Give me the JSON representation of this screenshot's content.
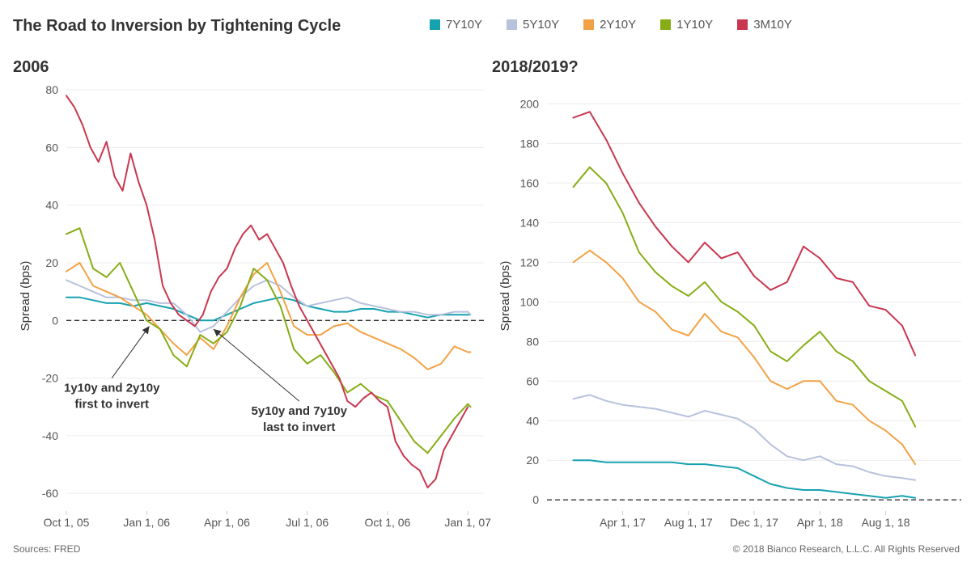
{
  "title": "The Road to Inversion by Tightening Cycle",
  "legend": [
    {
      "label": "7Y10Y",
      "color": "#17a2b0"
    },
    {
      "label": "5Y10Y",
      "color": "#b7c2dc"
    },
    {
      "label": "2Y10Y",
      "color": "#f2a246"
    },
    {
      "label": "1Y10Y",
      "color": "#86ad16"
    },
    {
      "label": "3M10Y",
      "color": "#c8374f"
    }
  ],
  "footer": {
    "source": "Sources: FRED",
    "copyright": "© 2018 Bianco Research, L.L.C. All Rights Reserved"
  },
  "chart_data": [
    {
      "type": "line",
      "title": "2006",
      "ylabel": "Spread (bps)",
      "ylim": [
        -65,
        82
      ],
      "yticks": [
        80,
        60,
        40,
        20,
        0,
        -20,
        -40,
        -60
      ],
      "xticks": [
        "Oct 1, 05",
        "Jan 1, 06",
        "Apr 1, 06",
        "Jul 1, 06",
        "Oct 1, 06",
        "Jan 1, 07"
      ],
      "xlim": [
        0,
        15.6
      ],
      "tick_positions": [
        0,
        3,
        6,
        9,
        12,
        15
      ],
      "zero_line": true,
      "grid": "horizontal",
      "annotations": [
        {
          "text": [
            "1y10y and 2y10y",
            "first to invert"
          ],
          "arrow_from": [
            1.7,
            -20
          ],
          "arrow_to": [
            3.1,
            -2
          ]
        },
        {
          "text": [
            "5y10y and 7y10y",
            "last to invert"
          ],
          "arrow_from": [
            8.7,
            -28
          ],
          "arrow_to": [
            5.5,
            -3
          ]
        }
      ],
      "series": [
        {
          "name": "7Y10Y",
          "x": [
            0,
            0.5,
            1,
            1.5,
            2,
            2.5,
            3,
            3.5,
            4,
            4.5,
            5,
            5.5,
            6,
            6.5,
            7,
            7.5,
            8,
            8.5,
            9,
            9.5,
            10,
            10.5,
            11,
            11.5,
            12,
            12.5,
            13,
            13.5,
            14,
            14.5,
            15,
            15.1
          ],
          "y": [
            8,
            8,
            7,
            6,
            6,
            5,
            6,
            5,
            4,
            2,
            0,
            0,
            2,
            4,
            6,
            7,
            8,
            7,
            5,
            4,
            3,
            3,
            4,
            4,
            3,
            3,
            2,
            1,
            2,
            2,
            2,
            2
          ]
        },
        {
          "name": "5Y10Y",
          "x": [
            0,
            0.5,
            1,
            1.5,
            2,
            2.5,
            3,
            3.5,
            4,
            4.5,
            5,
            5.5,
            6,
            6.5,
            7,
            7.5,
            8,
            8.5,
            9,
            9.5,
            10,
            10.5,
            11,
            11.5,
            12,
            12.5,
            13,
            13.5,
            14,
            14.5,
            15,
            15.1
          ],
          "y": [
            14,
            12,
            10,
            8,
            8,
            7,
            7,
            6,
            6,
            2,
            -4,
            -2,
            3,
            8,
            12,
            14,
            12,
            8,
            5,
            6,
            7,
            8,
            6,
            5,
            4,
            3,
            3,
            2,
            2,
            3,
            3,
            2
          ]
        },
        {
          "name": "2Y10Y",
          "x": [
            0,
            0.5,
            1,
            1.5,
            2,
            2.5,
            3,
            3.5,
            4,
            4.5,
            5,
            5.5,
            6,
            6.5,
            7,
            7.5,
            8,
            8.5,
            9,
            9.5,
            10,
            10.5,
            11,
            11.5,
            12,
            12.5,
            13,
            13.5,
            14,
            14.5,
            15,
            15.1
          ],
          "y": [
            17,
            20,
            12,
            10,
            8,
            5,
            2,
            -3,
            -8,
            -12,
            -6,
            -10,
            -2,
            8,
            16,
            20,
            10,
            -2,
            -5,
            -5,
            -2,
            -1,
            -4,
            -6,
            -8,
            -10,
            -13,
            -17,
            -15,
            -9,
            -11,
            -11
          ]
        },
        {
          "name": "1Y10Y",
          "x": [
            0,
            0.5,
            1,
            1.5,
            2,
            2.5,
            3,
            3.5,
            4,
            4.5,
            5,
            5.5,
            6,
            6.5,
            7,
            7.5,
            8,
            8.5,
            9,
            9.5,
            10,
            10.5,
            11,
            11.5,
            12,
            12.5,
            13,
            13.5,
            14,
            14.5,
            15,
            15.1
          ],
          "y": [
            30,
            32,
            18,
            15,
            20,
            10,
            0,
            -3,
            -12,
            -16,
            -5,
            -8,
            -4,
            5,
            18,
            14,
            5,
            -10,
            -15,
            -12,
            -18,
            -25,
            -22,
            -26,
            -28,
            -35,
            -42,
            -46,
            -40,
            -34,
            -29,
            -30
          ]
        },
        {
          "name": "3M10Y",
          "x": [
            0,
            0.3,
            0.6,
            0.9,
            1.2,
            1.5,
            1.8,
            2.1,
            2.4,
            2.7,
            3,
            3.3,
            3.6,
            3.9,
            4.2,
            4.5,
            4.8,
            5.1,
            5.4,
            5.7,
            6,
            6.3,
            6.6,
            6.9,
            7.2,
            7.5,
            7.8,
            8.1,
            8.4,
            8.7,
            9,
            9.3,
            9.6,
            9.9,
            10.2,
            10.5,
            10.8,
            11.1,
            11.4,
            11.7,
            12,
            12.3,
            12.6,
            12.9,
            13.2,
            13.5,
            13.8,
            14.1,
            14.4,
            14.7,
            15
          ],
          "y": [
            78,
            74,
            68,
            60,
            55,
            62,
            50,
            45,
            58,
            48,
            40,
            28,
            12,
            6,
            2,
            0,
            -2,
            2,
            10,
            15,
            18,
            25,
            30,
            33,
            28,
            30,
            25,
            20,
            12,
            5,
            0,
            -5,
            -10,
            -15,
            -20,
            -28,
            -30,
            -27,
            -25,
            -28,
            -30,
            -42,
            -47,
            -50,
            -52,
            -58,
            -55,
            -45,
            -40,
            -35,
            -30
          ]
        }
      ]
    },
    {
      "type": "line",
      "title": "2018/2019?",
      "ylabel": "Spread (bps)",
      "ylim": [
        -4,
        210
      ],
      "yticks": [
        200,
        180,
        160,
        140,
        120,
        100,
        80,
        60,
        40,
        20,
        0
      ],
      "xticks": [
        "Apr 1, 17",
        "Aug 1, 17",
        "Dec 1, 17",
        "Apr 1, 18",
        "Aug 1, 18"
      ],
      "xlim": [
        -4.6,
        20.6
      ],
      "tick_positions": [
        0,
        4,
        8,
        12,
        16
      ],
      "zero_line": true,
      "grid": "horizontal",
      "series": [
        {
          "name": "7Y10Y",
          "x": [
            -3,
            -2,
            -1,
            0,
            1,
            2,
            3,
            4,
            5,
            6,
            7,
            8,
            9,
            10,
            11,
            12,
            13,
            14,
            15,
            16,
            17,
            17.8
          ],
          "y": [
            20,
            20,
            19,
            19,
            19,
            19,
            19,
            18,
            18,
            17,
            16,
            12,
            8,
            6,
            5,
            5,
            4,
            3,
            2,
            1,
            2,
            1
          ]
        },
        {
          "name": "5Y10Y",
          "x": [
            -3,
            -2,
            -1,
            0,
            1,
            2,
            3,
            4,
            5,
            6,
            7,
            8,
            9,
            10,
            11,
            12,
            13,
            14,
            15,
            16,
            17,
            17.8
          ],
          "y": [
            51,
            53,
            50,
            48,
            47,
            46,
            44,
            42,
            45,
            43,
            41,
            36,
            28,
            22,
            20,
            22,
            18,
            17,
            14,
            12,
            11,
            10
          ]
        },
        {
          "name": "2Y10Y",
          "x": [
            -3,
            -2,
            -1,
            0,
            1,
            2,
            3,
            4,
            5,
            6,
            7,
            8,
            9,
            10,
            11,
            12,
            13,
            14,
            15,
            16,
            17,
            17.8
          ],
          "y": [
            120,
            126,
            120,
            112,
            100,
            95,
            86,
            83,
            94,
            85,
            82,
            72,
            60,
            56,
            60,
            60,
            50,
            48,
            40,
            35,
            28,
            18
          ]
        },
        {
          "name": "1Y10Y",
          "x": [
            -3,
            -2,
            -1,
            0,
            1,
            2,
            3,
            4,
            5,
            6,
            7,
            8,
            9,
            10,
            11,
            12,
            13,
            14,
            15,
            16,
            17,
            17.8
          ],
          "y": [
            158,
            168,
            160,
            145,
            125,
            115,
            108,
            103,
            110,
            100,
            95,
            88,
            75,
            70,
            78,
            85,
            75,
            70,
            60,
            55,
            50,
            37
          ]
        },
        {
          "name": "3M10Y",
          "x": [
            -3,
            -2,
            -1,
            0,
            1,
            2,
            3,
            4,
            5,
            6,
            7,
            8,
            9,
            10,
            11,
            12,
            13,
            14,
            15,
            16,
            17,
            17.8
          ],
          "y": [
            193,
            196,
            182,
            165,
            150,
            138,
            128,
            120,
            130,
            122,
            125,
            113,
            106,
            110,
            128,
            122,
            112,
            110,
            98,
            96,
            88,
            73
          ]
        }
      ]
    }
  ]
}
